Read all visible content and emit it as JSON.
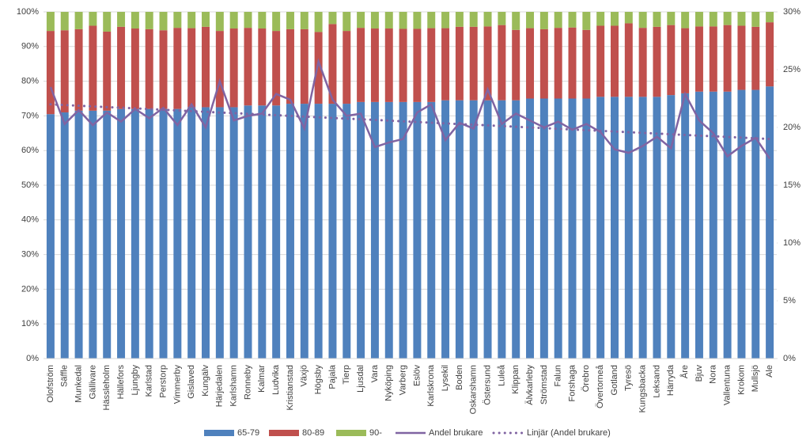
{
  "chart_data": {
    "type": "bar",
    "stacked": true,
    "categories": [
      "Olofström",
      "Säffle",
      "Munkedal",
      "Gällivare",
      "Hässleholm",
      "Hällefors",
      "Ljungby",
      "Karlstad",
      "Perstorp",
      "Vimmerby",
      "Gislaved",
      "Kungälv",
      "Härjedalen",
      "Karlshamn",
      "Ronneby",
      "Kalmar",
      "Ludvika",
      "Kristianstad",
      "Växjö",
      "Högsby",
      "Pajala",
      "Tierp",
      "Ljusdal",
      "Vara",
      "Nyköping",
      "Varberg",
      "Eslöv",
      "Karlskrona",
      "Lysekil",
      "Boden",
      "Oskarshamn",
      "Östersund",
      "Luleå",
      "Klippan",
      "Älvkarleby",
      "Strömstad",
      "Falun",
      "Forshaga",
      "Örebro",
      "Övertorneå",
      "Gotland",
      "Tyresö",
      "Kungsbacka",
      "Leksand",
      "Härryda",
      "Åre",
      "Bjuv",
      "Nora",
      "Vallentuna",
      "Krokom",
      "Mullsjö",
      "Ale"
    ],
    "series": [
      {
        "name": "65-79",
        "type": "bar",
        "color": "#4f81bd",
        "values": [
          70.5,
          71,
          71.5,
          71.5,
          71.5,
          72,
          72,
          72,
          72,
          72,
          72.5,
          72.5,
          72.5,
          72.5,
          73,
          73,
          73,
          73.5,
          73.5,
          73.5,
          73.5,
          73.5,
          74,
          74,
          74,
          74,
          74,
          74,
          74.5,
          74.5,
          74.5,
          74.5,
          74.5,
          74.5,
          75,
          75,
          75,
          75,
          75,
          75.5,
          75.5,
          75.5,
          75.5,
          75.5,
          76,
          76.5,
          77,
          77,
          77,
          77.5,
          77.5,
          78.5
        ]
      },
      {
        "name": "80-89",
        "type": "bar",
        "color": "#c0504d",
        "values": [
          24,
          23.7,
          23.5,
          24.5,
          22.8,
          23.7,
          23.2,
          23,
          22.7,
          23.4,
          22.8,
          23.2,
          22,
          22.7,
          22.4,
          22.2,
          21.5,
          21.5,
          21.5,
          20.7,
          23,
          21,
          21.4,
          21.2,
          21.2,
          21.1,
          21.1,
          21.3,
          20.8,
          21.2,
          21.2,
          21.3,
          21.7,
          20.3,
          20.3,
          20,
          20.4,
          20.5,
          19.8,
          20.5,
          20.5,
          21.2,
          19.9,
          20.2,
          20.2,
          18.8,
          18.8,
          18.8,
          19.2,
          18.5,
          18.2,
          18.5
        ]
      },
      {
        "name": "90-",
        "type": "bar",
        "color": "#9bbb59",
        "values": [
          5.5,
          5.3,
          5,
          4,
          5.7,
          4.3,
          4.8,
          5,
          5.3,
          4.6,
          4.7,
          4.3,
          5.5,
          4.8,
          4.6,
          4.8,
          5.5,
          5,
          5,
          5.8,
          3.5,
          5.5,
          4.6,
          4.8,
          4.8,
          4.9,
          4.9,
          4.7,
          4.7,
          4.3,
          4.3,
          4.2,
          3.8,
          5.2,
          4.7,
          5,
          4.6,
          4.5,
          5.2,
          4,
          4,
          3.3,
          4.6,
          4.3,
          3.8,
          4.7,
          4.2,
          4.2,
          3.8,
          4,
          4.3,
          3
        ]
      },
      {
        "name": "Andel brukare",
        "type": "line",
        "axis": "y2",
        "color": "#8064a2",
        "values": [
          23.5,
          20.3,
          21.5,
          20.2,
          21.3,
          20.5,
          21.6,
          20.8,
          21.7,
          20.2,
          22.0,
          20.0,
          24.0,
          20.6,
          21.0,
          21.2,
          22.9,
          22.4,
          19.9,
          25.7,
          22.4,
          21.0,
          21.2,
          18.3,
          18.7,
          19.0,
          21.3,
          22.0,
          18.9,
          20.4,
          19.9,
          23.3,
          20.3,
          21.2,
          20.6,
          20.0,
          20.5,
          19.8,
          20.3,
          19.6,
          18.1,
          17.8,
          18.4,
          19.2,
          18.2,
          22.9,
          20.6,
          19.5,
          17.5,
          18.4,
          19.1,
          17.3
        ]
      },
      {
        "name": "Linjär (Andel brukare)",
        "type": "line",
        "axis": "y2",
        "dashed": true,
        "color": "#8064a2",
        "values": [
          22.0,
          21.94,
          21.88,
          21.82,
          21.76,
          21.71,
          21.65,
          21.59,
          21.53,
          21.47,
          21.41,
          21.35,
          21.29,
          21.24,
          21.18,
          21.12,
          21.06,
          21.0,
          20.94,
          20.88,
          20.82,
          20.76,
          20.71,
          20.65,
          20.59,
          20.53,
          20.47,
          20.41,
          20.35,
          20.29,
          20.24,
          20.18,
          20.12,
          20.06,
          20.0,
          19.94,
          19.88,
          19.82,
          19.76,
          19.71,
          19.65,
          19.59,
          19.53,
          19.47,
          19.41,
          19.35,
          19.29,
          19.24,
          19.18,
          19.12,
          19.06,
          19.0
        ]
      }
    ],
    "ylim": [
      0,
      100
    ],
    "yticks": [
      {
        "value": 0,
        "label": "0%"
      },
      {
        "value": 10,
        "label": "10%"
      },
      {
        "value": 20,
        "label": "20%"
      },
      {
        "value": 30,
        "label": "30%"
      },
      {
        "value": 40,
        "label": "40%"
      },
      {
        "value": 50,
        "label": "50%"
      },
      {
        "value": 60,
        "label": "60%"
      },
      {
        "value": 70,
        "label": "70%"
      },
      {
        "value": 80,
        "label": "80%"
      },
      {
        "value": 90,
        "label": "90%"
      },
      {
        "value": 100,
        "label": "100%"
      }
    ],
    "y2lim": [
      0,
      30
    ],
    "y2ticks": [
      {
        "value": 0,
        "label": "0%"
      },
      {
        "value": 5,
        "label": "5%"
      },
      {
        "value": 10,
        "label": "10%"
      },
      {
        "value": 15,
        "label": "15%"
      },
      {
        "value": 20,
        "label": "20%"
      },
      {
        "value": 25,
        "label": "25%"
      },
      {
        "value": 30,
        "label": "30%"
      }
    ],
    "grid": true,
    "legend": "bottom"
  }
}
